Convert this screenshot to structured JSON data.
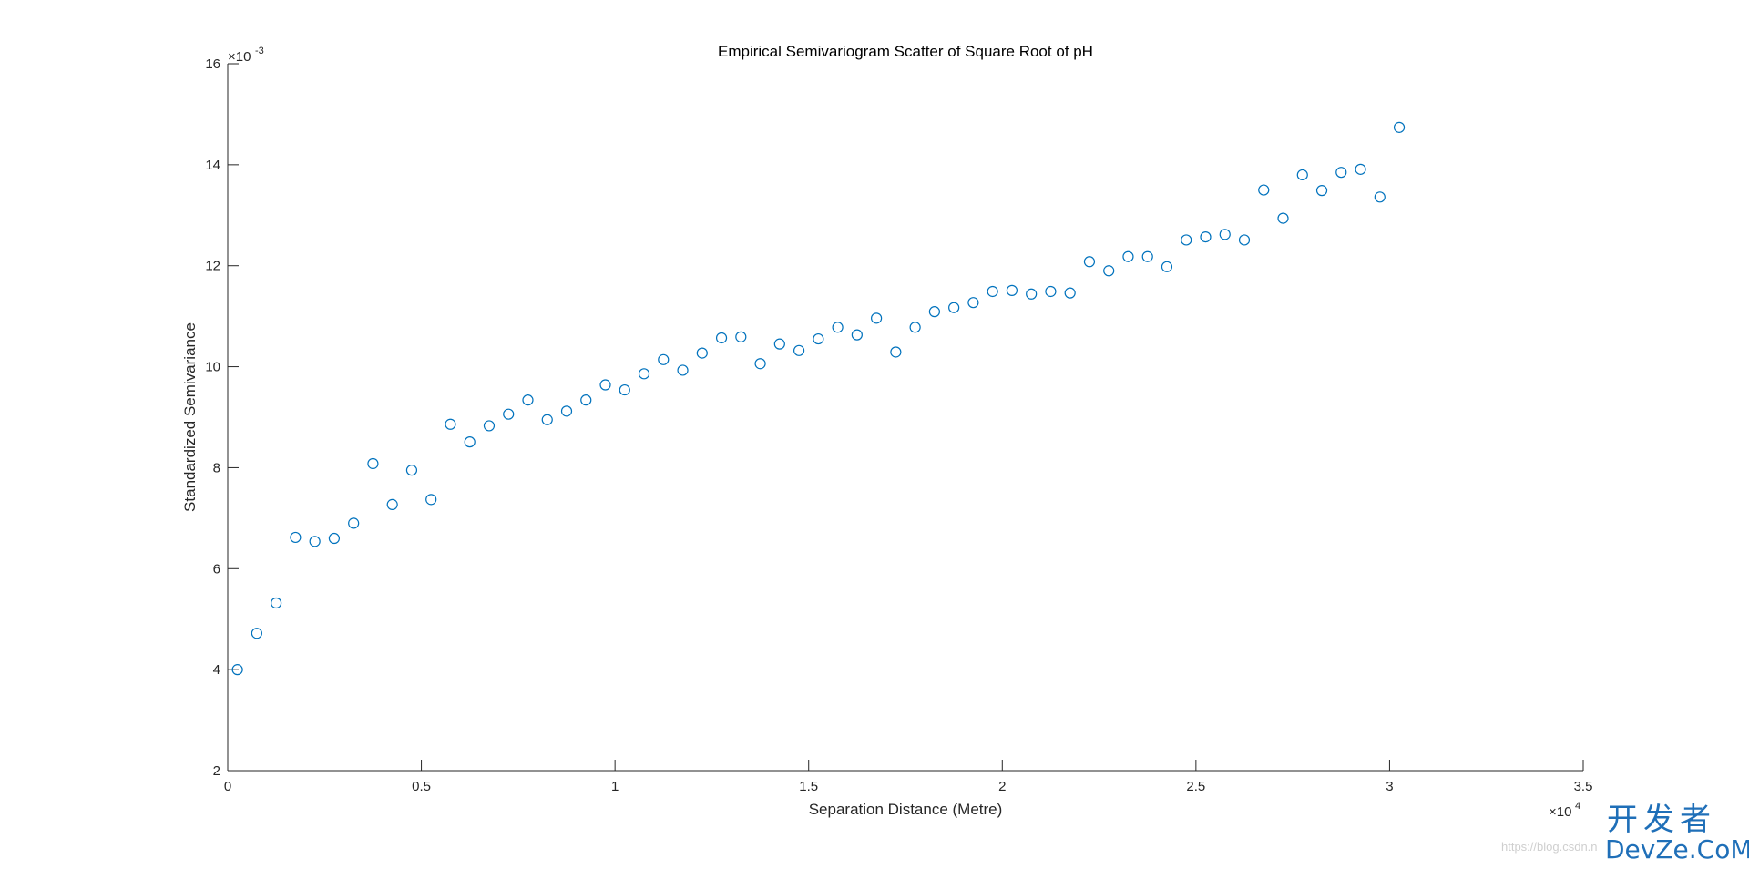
{
  "chart_data": {
    "type": "scatter",
    "title": "Empirical Semivariogram Scatter of Square Root of pH",
    "xlabel": "Separation Distance (Metre)",
    "ylabel": "Standardized Semivariance",
    "x_exponent_base": "×10",
    "x_exponent_power": "4",
    "y_exponent_base": "×10",
    "y_exponent_power": "-3",
    "xlim": [
      0,
      35000
    ],
    "ylim": [
      0.002,
      0.016
    ],
    "x_ticks": [
      0,
      5000,
      10000,
      15000,
      20000,
      25000,
      30000,
      35000
    ],
    "x_tick_labels": [
      "0",
      "0.5",
      "1",
      "1.5",
      "2",
      "2.5",
      "3",
      "3.5"
    ],
    "y_ticks": [
      0.002,
      0.004,
      0.006,
      0.008,
      0.01,
      0.012,
      0.014,
      0.016
    ],
    "y_tick_labels": [
      "2",
      "4",
      "6",
      "8",
      "10",
      "12",
      "14",
      "16"
    ],
    "grid": false,
    "marker": "circle-open",
    "color": "#0072bd",
    "series": [
      {
        "x": [
          250,
          750,
          1250,
          1750,
          2250,
          2750,
          3250,
          3750,
          4250,
          4750,
          5250,
          5750,
          6250,
          6750,
          7250,
          7750,
          8250,
          8750,
          9250,
          9750,
          10250,
          10750,
          11250,
          11750,
          12250,
          12750,
          13250,
          13750,
          14250,
          14750,
          15250,
          15750,
          16250,
          16750,
          17250,
          17750,
          18250,
          18750,
          19250,
          19750,
          20250,
          20750,
          21250,
          21750,
          22250,
          22750,
          23250,
          23750,
          24250,
          24750,
          25250,
          25750,
          26250,
          26750,
          27250,
          27750,
          28250,
          28750,
          29250,
          29750,
          30250
        ],
        "y": [
          0.004,
          0.00472,
          0.00532,
          0.00662,
          0.00654,
          0.0066,
          0.0069,
          0.00808,
          0.00727,
          0.00795,
          0.00737,
          0.00886,
          0.00851,
          0.00883,
          0.00906,
          0.00934,
          0.00895,
          0.00912,
          0.00934,
          0.00964,
          0.00954,
          0.00986,
          0.01014,
          0.00993,
          0.01027,
          0.01057,
          0.01059,
          0.01006,
          0.01045,
          0.01032,
          0.01055,
          0.01078,
          0.01063,
          0.01096,
          0.01029,
          0.01078,
          0.01109,
          0.01117,
          0.01127,
          0.01149,
          0.01151,
          0.01144,
          0.01149,
          0.01146,
          0.01208,
          0.0119,
          0.01218,
          0.01218,
          0.01198,
          0.01251,
          0.01257,
          0.01262,
          0.01251,
          0.0135,
          0.01294,
          0.0138,
          0.01349,
          0.01385,
          0.01391,
          0.01336,
          0.01474
        ]
      }
    ]
  },
  "watermark": {
    "url": "https://blog.csdn.n",
    "cn_text": "开发者",
    "en_text": "DevZe.CoM"
  }
}
